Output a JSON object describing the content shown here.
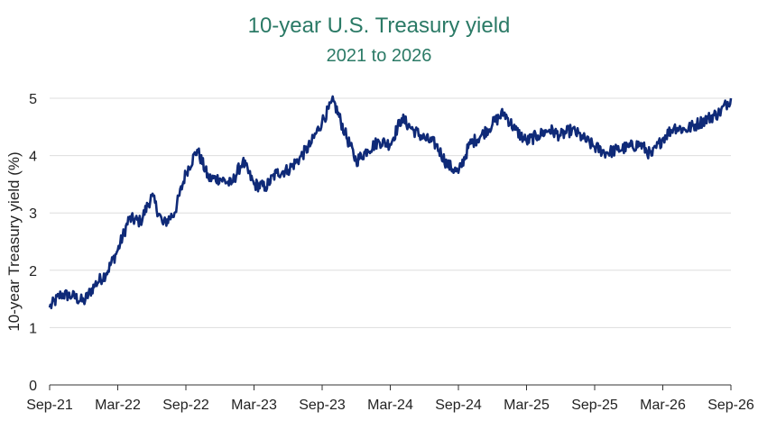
{
  "chart_data": {
    "type": "line",
    "title": "10-year U.S. Treasury yield",
    "subtitle": "2021 to 2026",
    "xlabel": "",
    "ylabel": "10-year Treasury yield (%)",
    "ylim": [
      0,
      5
    ],
    "yticks": [
      "0",
      "1",
      "2",
      "3",
      "4",
      "5"
    ],
    "xticks": [
      "Sep-21",
      "Mar-22",
      "Sep-22",
      "Mar-23",
      "Sep-23",
      "Mar-24",
      "Sep-24",
      "Mar-25",
      "Sep-25",
      "Mar-26",
      "Sep-26"
    ],
    "grid": true,
    "legend": "none",
    "colors": {
      "line": "#0f2a78",
      "title": "#2b7a66",
      "grid": "#dddddd",
      "axis": "#333333"
    },
    "series": [
      {
        "name": "",
        "x": [
          "2021-09",
          "2021-10",
          "2021-11",
          "2021-12",
          "2022-01",
          "2022-02",
          "2022-03",
          "2022-04",
          "2022-05",
          "2022-06",
          "2022-07",
          "2022-08",
          "2022-09",
          "2022-10",
          "2022-11",
          "2022-12",
          "2023-01",
          "2023-02",
          "2023-03",
          "2023-04",
          "2023-05",
          "2023-06",
          "2023-07",
          "2023-08",
          "2023-09",
          "2023-10",
          "2023-11",
          "2023-12",
          "2024-01",
          "2024-02",
          "2024-03",
          "2024-04",
          "2024-05",
          "2024-06",
          "2024-07",
          "2024-08",
          "2024-09",
          "2024-10",
          "2024-11",
          "2024-12",
          "2025-01",
          "2025-02",
          "2025-03",
          "2025-04",
          "2025-05",
          "2025-06",
          "2025-07",
          "2025-08",
          "2025-09",
          "2025-10",
          "2025-11",
          "2025-12",
          "2026-01",
          "2026-02",
          "2026-03",
          "2026-04",
          "2026-05",
          "2026-06",
          "2026-07",
          "2026-08",
          "2026-09"
        ],
        "values": [
          1.35,
          1.58,
          1.55,
          1.45,
          1.75,
          1.95,
          2.35,
          2.9,
          2.85,
          3.3,
          2.8,
          3.0,
          3.7,
          4.1,
          3.6,
          3.6,
          3.5,
          3.9,
          3.5,
          3.45,
          3.7,
          3.75,
          3.95,
          4.2,
          4.6,
          4.95,
          4.4,
          3.9,
          4.1,
          4.25,
          4.2,
          4.65,
          4.45,
          4.3,
          4.2,
          3.85,
          3.7,
          4.2,
          4.35,
          4.55,
          4.75,
          4.45,
          4.25,
          4.35,
          4.45,
          4.35,
          4.45,
          4.3,
          4.15,
          4.05,
          4.1,
          4.15,
          4.2,
          4.0,
          4.3,
          4.5,
          4.45,
          4.55,
          4.65,
          4.75,
          5.0
        ]
      }
    ]
  }
}
